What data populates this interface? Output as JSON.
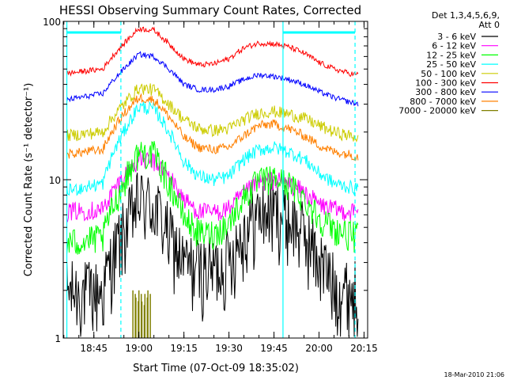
{
  "chart_data": {
    "type": "line",
    "title": "HESSI Observing Summary Count Rates, Corrected",
    "xlabel": "Start Time (07-Oct-09 18:35:02)",
    "ylabel": "Corrected Count Rate (s⁻¹ detector⁻¹)",
    "ylog": true,
    "ylim": [
      1,
      100
    ],
    "xlim_minutes": [
      18.58,
      20.27
    ],
    "x_ticks": [
      "18:45",
      "19:00",
      "19:15",
      "19:30",
      "19:45",
      "20:00",
      "20:15"
    ],
    "y_ticks": [
      "1",
      "10",
      "100"
    ],
    "timestamp": "18-Mar-2010 21:06",
    "legend": {
      "header": [
        "Det 1,3,4,5,6,9,",
        "Att 0"
      ],
      "position": "right"
    },
    "series": [
      {
        "name": "3 - 6 keV",
        "color": "#000000",
        "times": [
          "18:36",
          "18:48",
          "18:55",
          "19:00",
          "19:05",
          "19:10",
          "19:15",
          "19:20",
          "19:25",
          "19:30",
          "19:35",
          "19:40",
          "19:45",
          "19:50",
          "19:55",
          "20:00",
          "20:05",
          "20:10",
          "20:13"
        ],
        "values": [
          2.0,
          2.0,
          4.8,
          7.5,
          7.0,
          4.5,
          3.0,
          2.8,
          2.8,
          3.2,
          4.8,
          6.2,
          6.6,
          5.8,
          4.6,
          3.2,
          2.2,
          2.0,
          2.0
        ]
      },
      {
        "name": "6 - 12 keV",
        "color": "#ff00ff",
        "times": [
          "18:36",
          "18:48",
          "18:55",
          "19:00",
          "19:05",
          "19:10",
          "19:15",
          "19:20",
          "19:25",
          "19:30",
          "19:35",
          "19:40",
          "19:45",
          "19:50",
          "19:55",
          "20:00",
          "20:05",
          "20:10",
          "20:13"
        ],
        "values": [
          6.3,
          6.5,
          10.5,
          13.5,
          13.0,
          10.5,
          7.5,
          6.3,
          6.2,
          6.6,
          8.2,
          9.6,
          10.0,
          9.4,
          8.4,
          7.0,
          6.5,
          6.3,
          6.3
        ]
      },
      {
        "name": "12 - 25 keV",
        "color": "#00ff00",
        "times": [
          "18:36",
          "18:48",
          "18:55",
          "19:00",
          "19:05",
          "19:10",
          "19:15",
          "19:20",
          "19:25",
          "19:30",
          "19:35",
          "19:40",
          "19:45",
          "19:50",
          "19:55",
          "20:00",
          "20:05",
          "20:10",
          "20:13"
        ],
        "values": [
          4.0,
          4.3,
          9.5,
          15.0,
          14.5,
          9.5,
          5.8,
          4.6,
          4.6,
          5.3,
          7.8,
          9.8,
          10.2,
          9.3,
          7.6,
          5.8,
          4.9,
          4.5,
          4.4
        ]
      },
      {
        "name": "25 - 50 keV",
        "color": "#00ffff",
        "times": [
          "18:36",
          "18:48",
          "18:55",
          "19:00",
          "19:05",
          "19:10",
          "19:15",
          "19:20",
          "19:25",
          "19:30",
          "19:35",
          "19:40",
          "19:45",
          "19:50",
          "19:55",
          "20:00",
          "20:05",
          "20:10",
          "20:13"
        ],
        "values": [
          8.5,
          9.5,
          20.0,
          29.0,
          28.0,
          20.0,
          13.0,
          10.5,
          10.0,
          10.5,
          13.5,
          15.5,
          16.0,
          15.0,
          13.5,
          11.0,
          9.5,
          9.0,
          8.8
        ]
      },
      {
        "name": "50 - 100 keV",
        "color": "#cccc00",
        "times": [
          "18:36",
          "18:48",
          "18:55",
          "19:00",
          "19:05",
          "19:10",
          "19:15",
          "19:20",
          "19:25",
          "19:30",
          "19:35",
          "19:40",
          "19:45",
          "19:50",
          "19:55",
          "20:00",
          "20:05",
          "20:10",
          "20:13"
        ],
        "values": [
          19.0,
          20.0,
          30.0,
          38.0,
          37.0,
          30.0,
          24.0,
          21.0,
          20.5,
          21.0,
          24.0,
          26.5,
          27.0,
          26.0,
          24.5,
          22.0,
          20.0,
          19.0,
          18.5
        ]
      },
      {
        "name": "100 - 300 keV",
        "color": "#ff0000",
        "times": [
          "18:36",
          "18:48",
          "18:55",
          "19:00",
          "19:05",
          "19:10",
          "19:15",
          "19:20",
          "19:25",
          "19:30",
          "19:35",
          "19:40",
          "19:45",
          "19:50",
          "19:55",
          "20:00",
          "20:05",
          "20:10",
          "20:13"
        ],
        "values": [
          47,
          50,
          72,
          90,
          88,
          72,
          58,
          53,
          54,
          58,
          68,
          73,
          72,
          69,
          63,
          55,
          50,
          47,
          46
        ]
      },
      {
        "name": "300 - 800 keV",
        "color": "#0000ff",
        "times": [
          "18:36",
          "18:48",
          "18:55",
          "19:00",
          "19:05",
          "19:10",
          "19:15",
          "19:20",
          "19:25",
          "19:30",
          "19:35",
          "19:40",
          "19:45",
          "19:50",
          "19:55",
          "20:00",
          "20:05",
          "20:10",
          "20:13"
        ],
        "values": [
          32,
          35,
          50,
          62,
          60,
          50,
          40,
          37,
          37,
          39,
          43,
          46,
          45,
          43,
          40,
          36,
          33,
          31,
          30
        ]
      },
      {
        "name": "800 - 7000 keV",
        "color": "#ff8000",
        "times": [
          "18:36",
          "18:48",
          "18:55",
          "19:00",
          "19:05",
          "19:10",
          "19:15",
          "19:20",
          "19:25",
          "19:30",
          "19:35",
          "19:40",
          "19:45",
          "19:50",
          "19:55",
          "20:00",
          "20:05",
          "20:10",
          "20:13"
        ],
        "values": [
          14.5,
          15.5,
          26.0,
          33.0,
          32.0,
          25.0,
          18.5,
          16.0,
          15.5,
          16.0,
          19.0,
          22.0,
          22.5,
          21.0,
          19.0,
          16.5,
          15.0,
          14.5,
          14.0
        ]
      },
      {
        "name": "7000 - 20000 keV",
        "color": "#808000",
        "times": [
          "18:58",
          "18:59",
          "19:00",
          "19:01",
          "19:02",
          "19:03"
        ],
        "values": [
          2.0,
          1.8,
          2.0,
          1.7,
          1.9,
          2.0
        ]
      }
    ],
    "markers": {
      "vertical_solid_times": [
        "18:36",
        "19:48"
      ],
      "vertical_dashed_times": [
        "18:54",
        "20:12"
      ],
      "top_bar_segments": [
        [
          "18:36",
          "18:54"
        ],
        [
          "19:48",
          "20:12"
        ]
      ],
      "top_bar_color": "#00ffff"
    }
  }
}
